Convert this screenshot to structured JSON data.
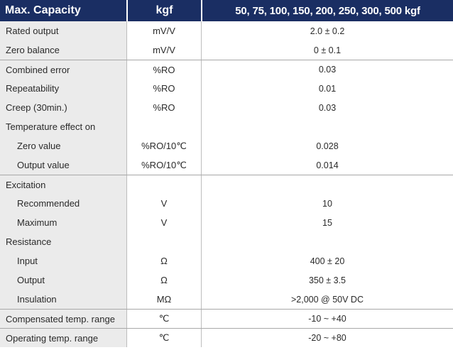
{
  "header": {
    "col1": "Max. Capacity",
    "col2": "kgf",
    "col3": "50, 75, 100, 150, 200, 250, 300, 500 kgf"
  },
  "rows": [
    {
      "label": "Rated output",
      "unit": "mV/V",
      "value": "2.0 ± 0.2"
    },
    {
      "label": "Zero balance",
      "unit": "mV/V",
      "value": "0 ± 0.1"
    },
    {
      "label": "Combined error",
      "unit": "%RO",
      "value": "0.03"
    },
    {
      "label": "Repeatability",
      "unit": "%RO",
      "value": "0.01"
    },
    {
      "label": "Creep (30min.)",
      "unit": "%RO",
      "value": "0.03"
    },
    {
      "label": "Temperature effect on",
      "unit": "",
      "value": ""
    },
    {
      "label": "Zero value",
      "unit": "%RO/10℃",
      "value": "0.028"
    },
    {
      "label": "Output  value",
      "unit": "%RO/10℃",
      "value": "0.014"
    },
    {
      "label": "Excitation",
      "unit": "",
      "value": ""
    },
    {
      "label": "Recommended",
      "unit": "V",
      "value": "10"
    },
    {
      "label": "Maximum",
      "unit": "V",
      "value": "15"
    },
    {
      "label": "Resistance",
      "unit": "",
      "value": ""
    },
    {
      "label": "Input",
      "unit": "Ω",
      "value": "400 ± 20"
    },
    {
      "label": "Output",
      "unit": "Ω",
      "value": "350 ± 3.5"
    },
    {
      "label": "Insulation",
      "unit": "MΩ",
      "value": ">2,000 @ 50V DC"
    },
    {
      "label": "Compensated temp. range",
      "unit": "℃",
      "value": "-10 ~ +40"
    },
    {
      "label": "Operating temp. range",
      "unit": "℃",
      "value": "-20 ~ +80"
    }
  ]
}
